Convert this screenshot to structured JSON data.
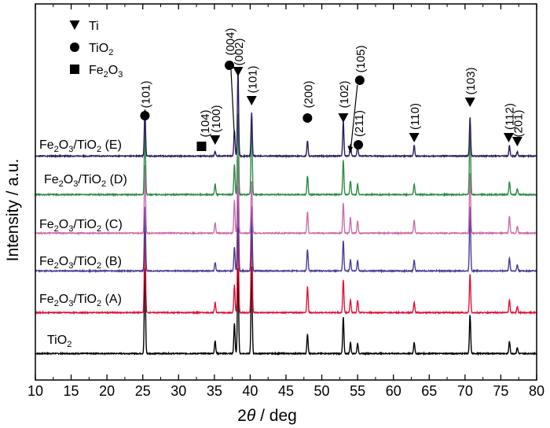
{
  "chart_data": {
    "type": "line",
    "title": "",
    "xlabel": "2θ / deg",
    "ylabel": "Intensity / a.u.",
    "xlim": [
      10,
      80
    ],
    "x_ticks": [
      10,
      15,
      20,
      25,
      30,
      35,
      40,
      45,
      50,
      55,
      60,
      65,
      70,
      75,
      80
    ],
    "y_ticks_shown": false,
    "grid": false,
    "series": [
      {
        "name": "TiO2",
        "name_sub": "2",
        "color": "#000000",
        "peaks": [
          [
            25.3,
            1.0
          ],
          [
            35.1,
            0.15
          ],
          [
            37.8,
            0.35
          ],
          [
            38.3,
            1.0
          ],
          [
            40.2,
            1.0
          ],
          [
            48.0,
            0.22
          ],
          [
            53.0,
            0.42
          ],
          [
            54.0,
            0.13
          ],
          [
            55.0,
            0.12
          ],
          [
            62.9,
            0.13
          ],
          [
            70.7,
            0.45
          ],
          [
            76.2,
            0.14
          ],
          [
            77.3,
            0.07
          ]
        ]
      },
      {
        "name": "Fe2O3/TiO2 (A)",
        "color": "#e0143c",
        "peaks": [
          [
            25.3,
            0.95
          ],
          [
            35.1,
            0.12
          ],
          [
            37.8,
            0.32
          ],
          [
            38.3,
            1.0
          ],
          [
            40.2,
            1.0
          ],
          [
            48.0,
            0.3
          ],
          [
            53.0,
            0.38
          ],
          [
            54.0,
            0.15
          ],
          [
            55.0,
            0.14
          ],
          [
            62.9,
            0.12
          ],
          [
            70.7,
            0.45
          ],
          [
            76.2,
            0.15
          ],
          [
            77.3,
            0.07
          ]
        ]
      },
      {
        "name": "Fe2O3/TiO2 (B)",
        "color": "#4b3c96",
        "peaks": [
          [
            25.3,
            0.75
          ],
          [
            35.1,
            0.1
          ],
          [
            37.8,
            0.28
          ],
          [
            38.3,
            1.0
          ],
          [
            40.2,
            0.75
          ],
          [
            48.0,
            0.25
          ],
          [
            53.0,
            0.35
          ],
          [
            54.0,
            0.13
          ],
          [
            55.0,
            0.12
          ],
          [
            62.9,
            0.12
          ],
          [
            70.7,
            0.75
          ],
          [
            76.2,
            0.15
          ],
          [
            77.3,
            0.07
          ]
        ]
      },
      {
        "name": "Fe2O3/TiO2 (C)",
        "color": "#cc6ead",
        "peaks": [
          [
            25.3,
            0.8
          ],
          [
            35.1,
            0.12
          ],
          [
            37.8,
            0.38
          ],
          [
            38.3,
            0.9
          ],
          [
            40.2,
            0.6
          ],
          [
            48.0,
            0.25
          ],
          [
            53.0,
            0.35
          ],
          [
            54.0,
            0.18
          ],
          [
            55.0,
            0.14
          ],
          [
            62.9,
            0.15
          ],
          [
            70.7,
            0.7
          ],
          [
            76.2,
            0.2
          ],
          [
            77.3,
            0.08
          ]
        ]
      },
      {
        "name": "Fe2O3/TiO2 (D)",
        "color": "#2e8b46",
        "peaks": [
          [
            25.3,
            0.8
          ],
          [
            35.1,
            0.12
          ],
          [
            37.8,
            0.35
          ],
          [
            38.3,
            0.95
          ],
          [
            40.2,
            0.9
          ],
          [
            48.0,
            0.22
          ],
          [
            53.0,
            0.4
          ],
          [
            54.0,
            0.16
          ],
          [
            55.0,
            0.12
          ],
          [
            62.9,
            0.12
          ],
          [
            70.7,
            0.8
          ],
          [
            76.2,
            0.15
          ],
          [
            77.3,
            0.07
          ]
        ]
      },
      {
        "name": "Fe2O3/TiO2 (E)",
        "color": "#2e1c5e",
        "peaks": [
          [
            25.3,
            0.55
          ],
          [
            35.1,
            0.05
          ],
          [
            37.8,
            0.3
          ],
          [
            38.3,
            1.0
          ],
          [
            40.2,
            0.5
          ],
          [
            48.0,
            0.18
          ],
          [
            53.0,
            0.4
          ],
          [
            54.0,
            0.13
          ],
          [
            55.0,
            0.12
          ],
          [
            62.9,
            0.12
          ],
          [
            70.7,
            0.45
          ],
          [
            76.2,
            0.12
          ],
          [
            77.3,
            0.05
          ]
        ]
      }
    ],
    "series_labels": [
      {
        "pre": "TiO",
        "sub1": "2",
        "mid": "",
        "sub2": "",
        "post": ""
      },
      {
        "pre": "Fe",
        "sub1": "2",
        "mid": "O",
        "sub2": "3",
        "post": "/TiO",
        "sub3": "2",
        "tail": " (A)"
      },
      {
        "pre": "Fe",
        "sub1": "2",
        "mid": "O",
        "sub2": "3",
        "post": "/TiO",
        "sub3": "2",
        "tail": " (B)"
      },
      {
        "pre": "Fe",
        "sub1": "2",
        "mid": "O",
        "sub2": "3",
        "post": "/TiO",
        "sub3": "2",
        "tail": " (C)"
      },
      {
        "pre": "Fe",
        "sub1": "2",
        "mid": "O",
        "sub2": "3",
        "post": "/TiO",
        "sub3": "2",
        "tail": " (D)"
      },
      {
        "pre": "Fe",
        "sub1": "2",
        "mid": "O",
        "sub2": "3",
        "post": "/TiO",
        "sub3": "2",
        "tail": " (E)"
      }
    ],
    "legend": {
      "placement": "top-left",
      "entries": [
        {
          "symbol": "triangle-down",
          "label": "Ti",
          "sub": ""
        },
        {
          "symbol": "circle",
          "label": "TiO",
          "sub": "2"
        },
        {
          "symbol": "square",
          "label": "Fe",
          "sub": "2",
          "label2": "O",
          "sub2": "3"
        }
      ]
    },
    "annotations": [
      {
        "marker": "circle",
        "label": "(101)",
        "x": 25.3
      },
      {
        "marker": "square",
        "label": "(104)",
        "x": 33.2
      },
      {
        "marker": "triangle-down",
        "label": "(100)",
        "x": 35.1
      },
      {
        "marker": "circle",
        "label": "(004)",
        "x": 37.8
      },
      {
        "marker": "triangle-down",
        "label": "(002)",
        "x": 38.3
      },
      {
        "marker": "triangle-down",
        "label": "(101)",
        "x": 40.2
      },
      {
        "marker": "circle",
        "label": "(200)",
        "x": 48.0
      },
      {
        "marker": "triangle-down",
        "label": "(102)",
        "x": 53.0
      },
      {
        "marker": "circle",
        "label": "(105)",
        "x": 53.9
      },
      {
        "marker": "circle",
        "label": "(211)",
        "x": 55.1
      },
      {
        "marker": "triangle-down",
        "label": "(110)",
        "x": 62.9
      },
      {
        "marker": "triangle-down",
        "label": "(103)",
        "x": 70.7
      },
      {
        "marker": "triangle-down",
        "label": "(112)",
        "x": 76.1
      },
      {
        "marker": "triangle-down",
        "label": "(201)",
        "x": 77.3
      }
    ]
  }
}
